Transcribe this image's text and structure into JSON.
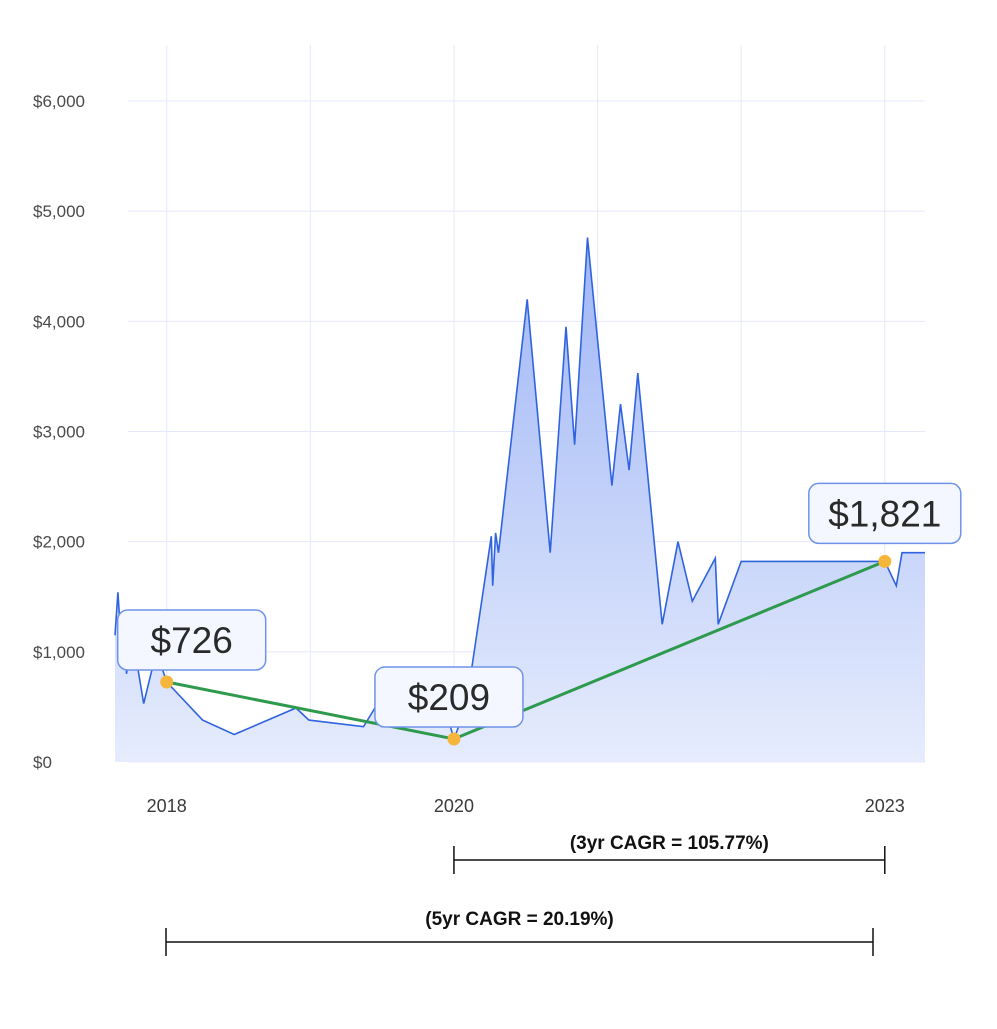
{
  "chart_data": {
    "type": "area",
    "colors": {
      "line": "#2f63e0",
      "fill_top": "#9fb6f5",
      "fill_bottom": "#e6ecfd",
      "trend": "#2e9a4e",
      "marker": "#f6b63c",
      "grid": "#e6e8fb",
      "callout_border": "#6f93e8"
    },
    "y_axis": {
      "ylim": [
        0,
        6000
      ],
      "ticks": [
        0,
        1000,
        2000,
        3000,
        4000,
        5000,
        6000
      ],
      "tick_labels": [
        "$0",
        "$1,000",
        "$2,000",
        "$3,000",
        "$4,000",
        "$5,000",
        "$6,000"
      ]
    },
    "x_axis": {
      "xlim": [
        2017.64,
        2023.28
      ],
      "ticks": [
        2018,
        2020,
        2023
      ],
      "tick_labels": [
        "2018",
        "2020",
        "2023"
      ],
      "gridlines": [
        2018,
        2019,
        2020,
        2021,
        2022,
        2023
      ]
    },
    "grid": true,
    "series": [
      {
        "values": [
          [
            2017.64,
            1150
          ],
          [
            2017.66,
            1540
          ],
          [
            2017.68,
            1150
          ],
          [
            2017.71,
            1380
          ],
          [
            2017.72,
            800
          ],
          [
            2017.74,
            1000
          ],
          [
            2017.78,
            1000
          ],
          [
            2017.84,
            530
          ],
          [
            2017.89,
            800
          ],
          [
            2017.93,
            1000
          ],
          [
            2018.0,
            726
          ],
          [
            2018.25,
            380
          ],
          [
            2018.47,
            250
          ],
          [
            2018.9,
            490
          ],
          [
            2018.99,
            380
          ],
          [
            2019.37,
            320
          ],
          [
            2019.45,
            490
          ],
          [
            2019.5,
            320
          ],
          [
            2019.84,
            420
          ],
          [
            2019.94,
            490
          ],
          [
            2020.0,
            209
          ],
          [
            2020.05,
            380
          ],
          [
            2020.1,
            640
          ],
          [
            2020.26,
            2050
          ],
          [
            2020.27,
            1600
          ],
          [
            2020.29,
            2080
          ],
          [
            2020.31,
            1900
          ],
          [
            2020.51,
            4200
          ],
          [
            2020.67,
            1900
          ],
          [
            2020.78,
            3950
          ],
          [
            2020.84,
            2880
          ],
          [
            2020.93,
            4760
          ],
          [
            2021.1,
            2510
          ],
          [
            2021.16,
            3250
          ],
          [
            2021.22,
            2650
          ],
          [
            2021.28,
            3530
          ],
          [
            2021.45,
            1250
          ],
          [
            2021.56,
            2000
          ],
          [
            2021.66,
            1460
          ],
          [
            2021.82,
            1850
          ],
          [
            2021.84,
            1250
          ],
          [
            2022.0,
            1821
          ],
          [
            2023.0,
            1821
          ],
          [
            2023.08,
            1600
          ],
          [
            2023.12,
            1900
          ],
          [
            2023.28,
            1900
          ]
        ]
      }
    ],
    "trend_points": [
      {
        "x": 2018.0,
        "y": 726,
        "label": "$726"
      },
      {
        "x": 2020.0,
        "y": 209,
        "label": "$209"
      },
      {
        "x": 2023.0,
        "y": 1821,
        "label": "$1,821"
      }
    ],
    "cagr_annotations": [
      {
        "label": "(3yr CAGR = 105.77%)",
        "from": 2020,
        "to": 2023
      },
      {
        "label": "(5yr CAGR = 20.19%)",
        "from": 2018,
        "to": 2023
      }
    ]
  }
}
